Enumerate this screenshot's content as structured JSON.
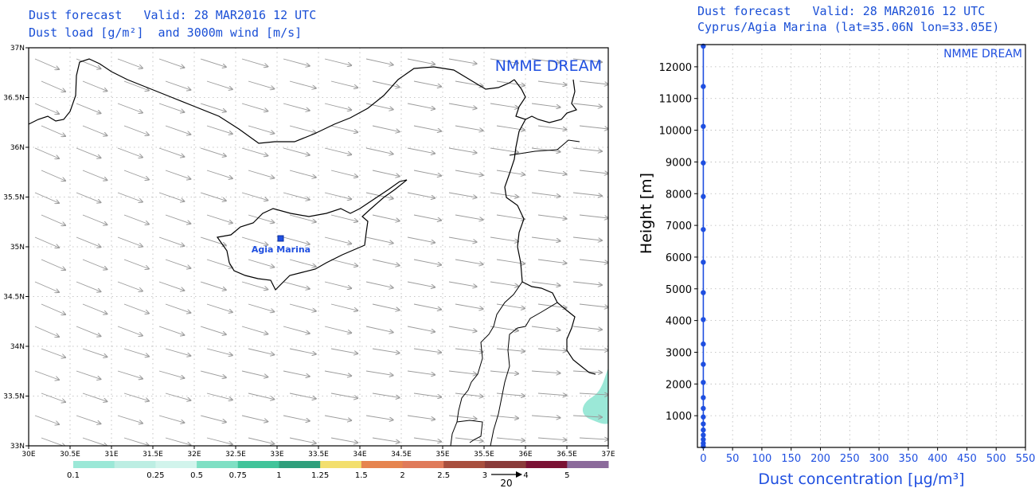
{
  "map_panel": {
    "title_line1": "Dust forecast   Valid: 28 MAR2016 12 UTC",
    "title_line2": "Dust load [g/m²]  and 3000m wind [m/s]",
    "watermark": "NMME DREAM",
    "lat_labels": [
      "37N",
      "36.5N",
      "36N",
      "35.5N",
      "35N",
      "34.5N",
      "34N",
      "33.5N",
      "33N"
    ],
    "lon_labels": [
      "30E",
      "30.5E",
      "31E",
      "31.5E",
      "32E",
      "32.5E",
      "33E",
      "33.5E",
      "34E",
      "34.5E",
      "35E",
      "35.5E",
      "36E",
      "36.5E",
      "37E"
    ],
    "station": {
      "name": "Agia Marina",
      "lat": 35.06,
      "lon": 33.05
    },
    "colorbar": {
      "labels": [
        "0.1",
        "0.25",
        "0.5",
        "0.75",
        "1",
        "1.25",
        "1.5",
        "2",
        "2.5",
        "3",
        "4",
        "5"
      ],
      "colors": [
        "#9be8d7",
        "#bdeee3",
        "#d2f4ec",
        "#7fe0c4",
        "#41c49a",
        "#2f9f7c",
        "#f3df6e",
        "#e6844f",
        "#e07a5a",
        "#a84f3e",
        "#8a3b3a",
        "#7a1134",
        "#8b6a9b"
      ]
    },
    "wind_reference": {
      "label": "20"
    }
  },
  "profile_panel": {
    "title_line1": "Dust forecast   Valid: 28 MAR2016 12 UTC",
    "title_line2": "Cyprus/Agia Marina (lat=35.06N lon=33.05E)",
    "watermark": "NMME DREAM",
    "ylabel": "Height [m]",
    "xlabel": "Dust concentration [µg/m³]"
  },
  "chart_data": {
    "type": "line",
    "x_ticks": [
      0,
      50,
      100,
      150,
      200,
      250,
      300,
      350,
      400,
      450,
      500,
      550
    ],
    "y_ticks": [
      1000,
      2000,
      3000,
      4000,
      5000,
      6000,
      7000,
      8000,
      9000,
      10000,
      11000,
      12000
    ],
    "xlim": [
      -10,
      550
    ],
    "ylim": [
      0,
      12700
    ],
    "grid": true,
    "series": [
      {
        "color": "#1f4fe0",
        "points": [
          {
            "x": 0,
            "y": 12650
          },
          {
            "x": 0,
            "y": 11380
          },
          {
            "x": 0,
            "y": 10120
          },
          {
            "x": 0,
            "y": 8970
          },
          {
            "x": 0,
            "y": 7910
          },
          {
            "x": 0,
            "y": 6870
          },
          {
            "x": 0,
            "y": 5840
          },
          {
            "x": 0,
            "y": 4880
          },
          {
            "x": 0,
            "y": 4030
          },
          {
            "x": 0,
            "y": 3260
          },
          {
            "x": 0,
            "y": 2620
          },
          {
            "x": 0,
            "y": 2050
          },
          {
            "x": 0,
            "y": 1570
          },
          {
            "x": 0,
            "y": 1230
          },
          {
            "x": 0,
            "y": 960
          },
          {
            "x": 0,
            "y": 740
          },
          {
            "x": 0,
            "y": 550
          },
          {
            "x": 0,
            "y": 390
          },
          {
            "x": 0,
            "y": 250
          },
          {
            "x": 0,
            "y": 130
          },
          {
            "x": 0,
            "y": 40
          }
        ]
      }
    ]
  }
}
